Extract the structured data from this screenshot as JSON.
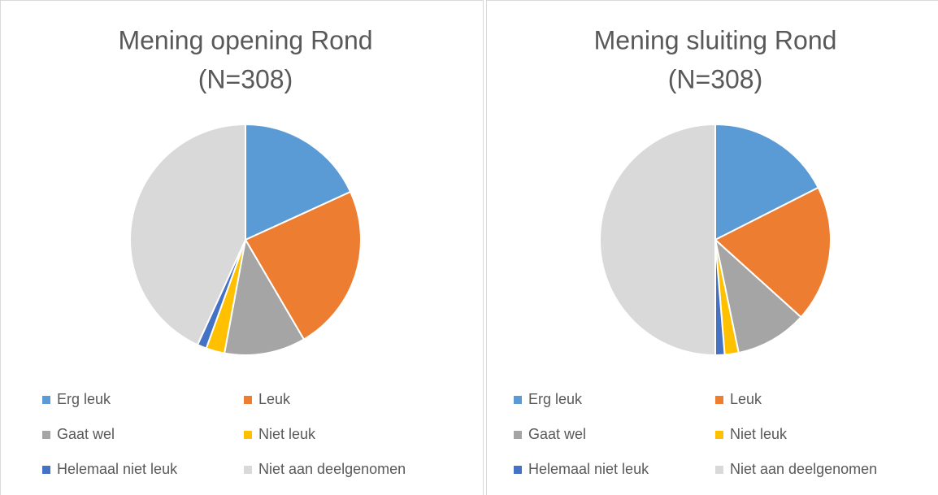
{
  "chart_data": [
    {
      "type": "pie",
      "title": "Mening opening Rond",
      "subtitle": "(N=308)",
      "categories": [
        "Erg leuk",
        "Leuk",
        "Gaat wel",
        "Niet leuk",
        "Helemaal niet leuk",
        "Niet aan deelgenomen"
      ],
      "values": [
        56,
        72,
        35,
        8,
        4,
        133
      ],
      "colors": [
        "#5b9bd5",
        "#ed7d31",
        "#a5a5a5",
        "#ffc000",
        "#4472c4",
        "#d9d9d9"
      ],
      "legend": "bottom"
    },
    {
      "type": "pie",
      "title": "Mening sluiting Rond",
      "subtitle": "(N=308)",
      "categories": [
        "Erg leuk",
        "Leuk",
        "Gaat wel",
        "Niet leuk",
        "Helemaal niet leuk",
        "Niet aan deelgenomen"
      ],
      "values": [
        54,
        59,
        31,
        6,
        4,
        154
      ],
      "colors": [
        "#5b9bd5",
        "#ed7d31",
        "#a5a5a5",
        "#ffc000",
        "#4472c4",
        "#d9d9d9"
      ],
      "legend": "bottom"
    }
  ]
}
